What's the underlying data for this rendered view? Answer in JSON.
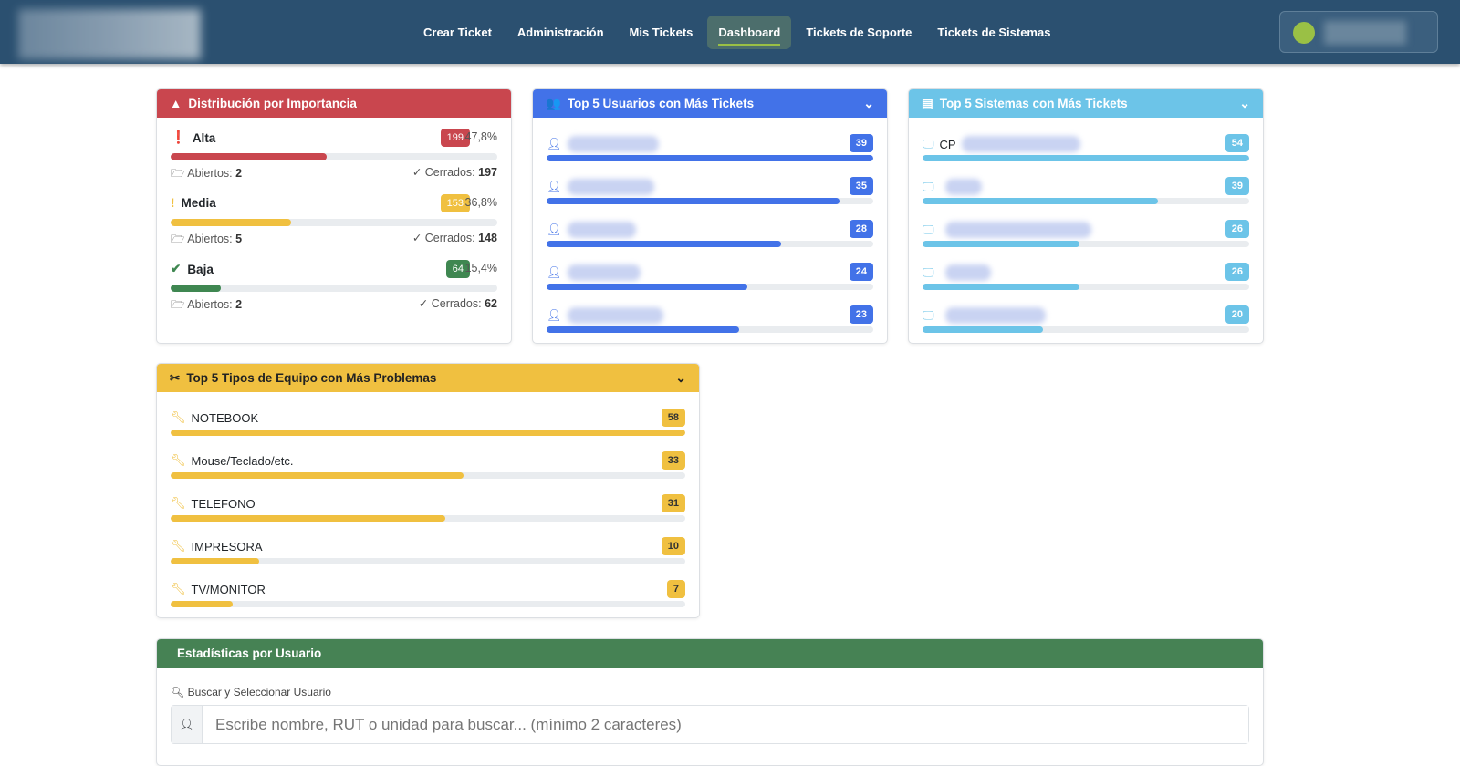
{
  "nav": {
    "items": [
      "Crear Ticket",
      "Administración",
      "Mis Tickets",
      "Dashboard",
      "Tickets de Soporte",
      "Tickets de Sistemas"
    ],
    "active": 3
  },
  "importance": {
    "title": "Distribución por Importancia",
    "open_label": "Abiertos:",
    "closed_label": "Cerrados:",
    "levels": [
      {
        "name": "Alta",
        "count": "199",
        "pct": "47,8%",
        "open": "2",
        "closed": "197",
        "color": "#c9464e",
        "fill": 47.8
      },
      {
        "name": "Media",
        "count": "153",
        "pct": "36,8%",
        "open": "5",
        "closed": "148",
        "color": "#f0c040",
        "fill": 36.8
      },
      {
        "name": "Baja",
        "count": "64",
        "pct": "15,4%",
        "open": "2",
        "closed": "62",
        "color": "#3f8751",
        "fill": 15.4
      }
    ]
  },
  "users": {
    "title": "Top 5 Usuarios con Más Tickets",
    "color": "#4272e8",
    "items": [
      {
        "count": "39"
      },
      {
        "count": "35"
      },
      {
        "count": "28"
      },
      {
        "count": "24"
      },
      {
        "count": "23"
      }
    ]
  },
  "systems": {
    "title": "Top 5 Sistemas con Más Tickets",
    "color": "#6cc4e8",
    "items": [
      {
        "name": "CP",
        "count": "54"
      },
      {
        "name": "",
        "count": "39"
      },
      {
        "name": "",
        "count": "26"
      },
      {
        "name": "",
        "count": "26"
      },
      {
        "name": "",
        "count": "20"
      }
    ]
  },
  "equipment": {
    "title": "Top 5 Tipos de Equipo con Más Problemas",
    "color": "#f0c040",
    "items": [
      {
        "name": "NOTEBOOK",
        "count": "58"
      },
      {
        "name": "Mouse/Teclado/etc.",
        "count": "33"
      },
      {
        "name": "TELEFONO",
        "count": "31"
      },
      {
        "name": "IMPRESORA",
        "count": "10"
      },
      {
        "name": "TV/MONITOR",
        "count": "7"
      }
    ]
  },
  "stats": {
    "title": "Estadísticas por Usuario",
    "search_label": "Buscar y Seleccionar Usuario",
    "placeholder": "Escribe nombre, RUT o unidad para buscar... (mínimo 2 caracteres)"
  }
}
